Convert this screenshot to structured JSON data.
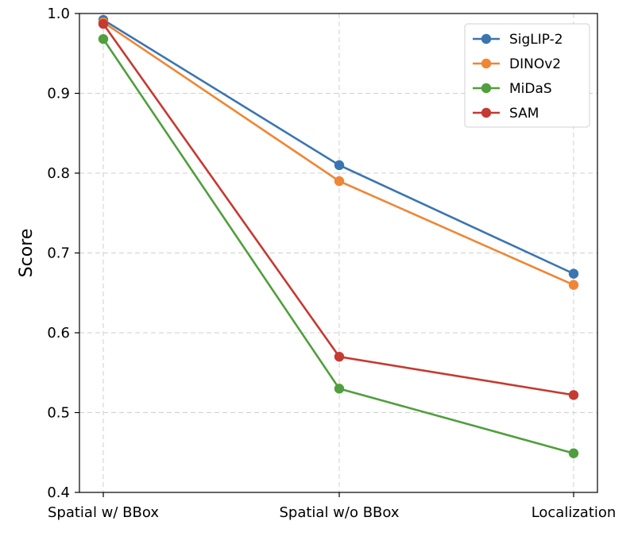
{
  "chart_data": {
    "type": "line",
    "title": "",
    "xlabel": "",
    "ylabel": "Score",
    "categories": [
      "Spatial w/ BBox",
      "Spatial w/o BBox",
      "Localization"
    ],
    "ylim": [
      0.4,
      1.0
    ],
    "yticks": [
      "0.4",
      "0.5",
      "0.6",
      "0.7",
      "0.8",
      "0.9",
      "1.0"
    ],
    "grid": true,
    "legend_position": "top-right",
    "series": [
      {
        "name": "SigLIP-2",
        "color": "#3b75af",
        "values": [
          0.992,
          0.81,
          0.674
        ]
      },
      {
        "name": "DINOv2",
        "color": "#ef8636",
        "values": [
          0.989,
          0.79,
          0.66
        ]
      },
      {
        "name": "MiDaS",
        "color": "#519e3e",
        "values": [
          0.968,
          0.53,
          0.449
        ]
      },
      {
        "name": "SAM",
        "color": "#c53a32",
        "values": [
          0.987,
          0.57,
          0.522
        ]
      }
    ]
  }
}
